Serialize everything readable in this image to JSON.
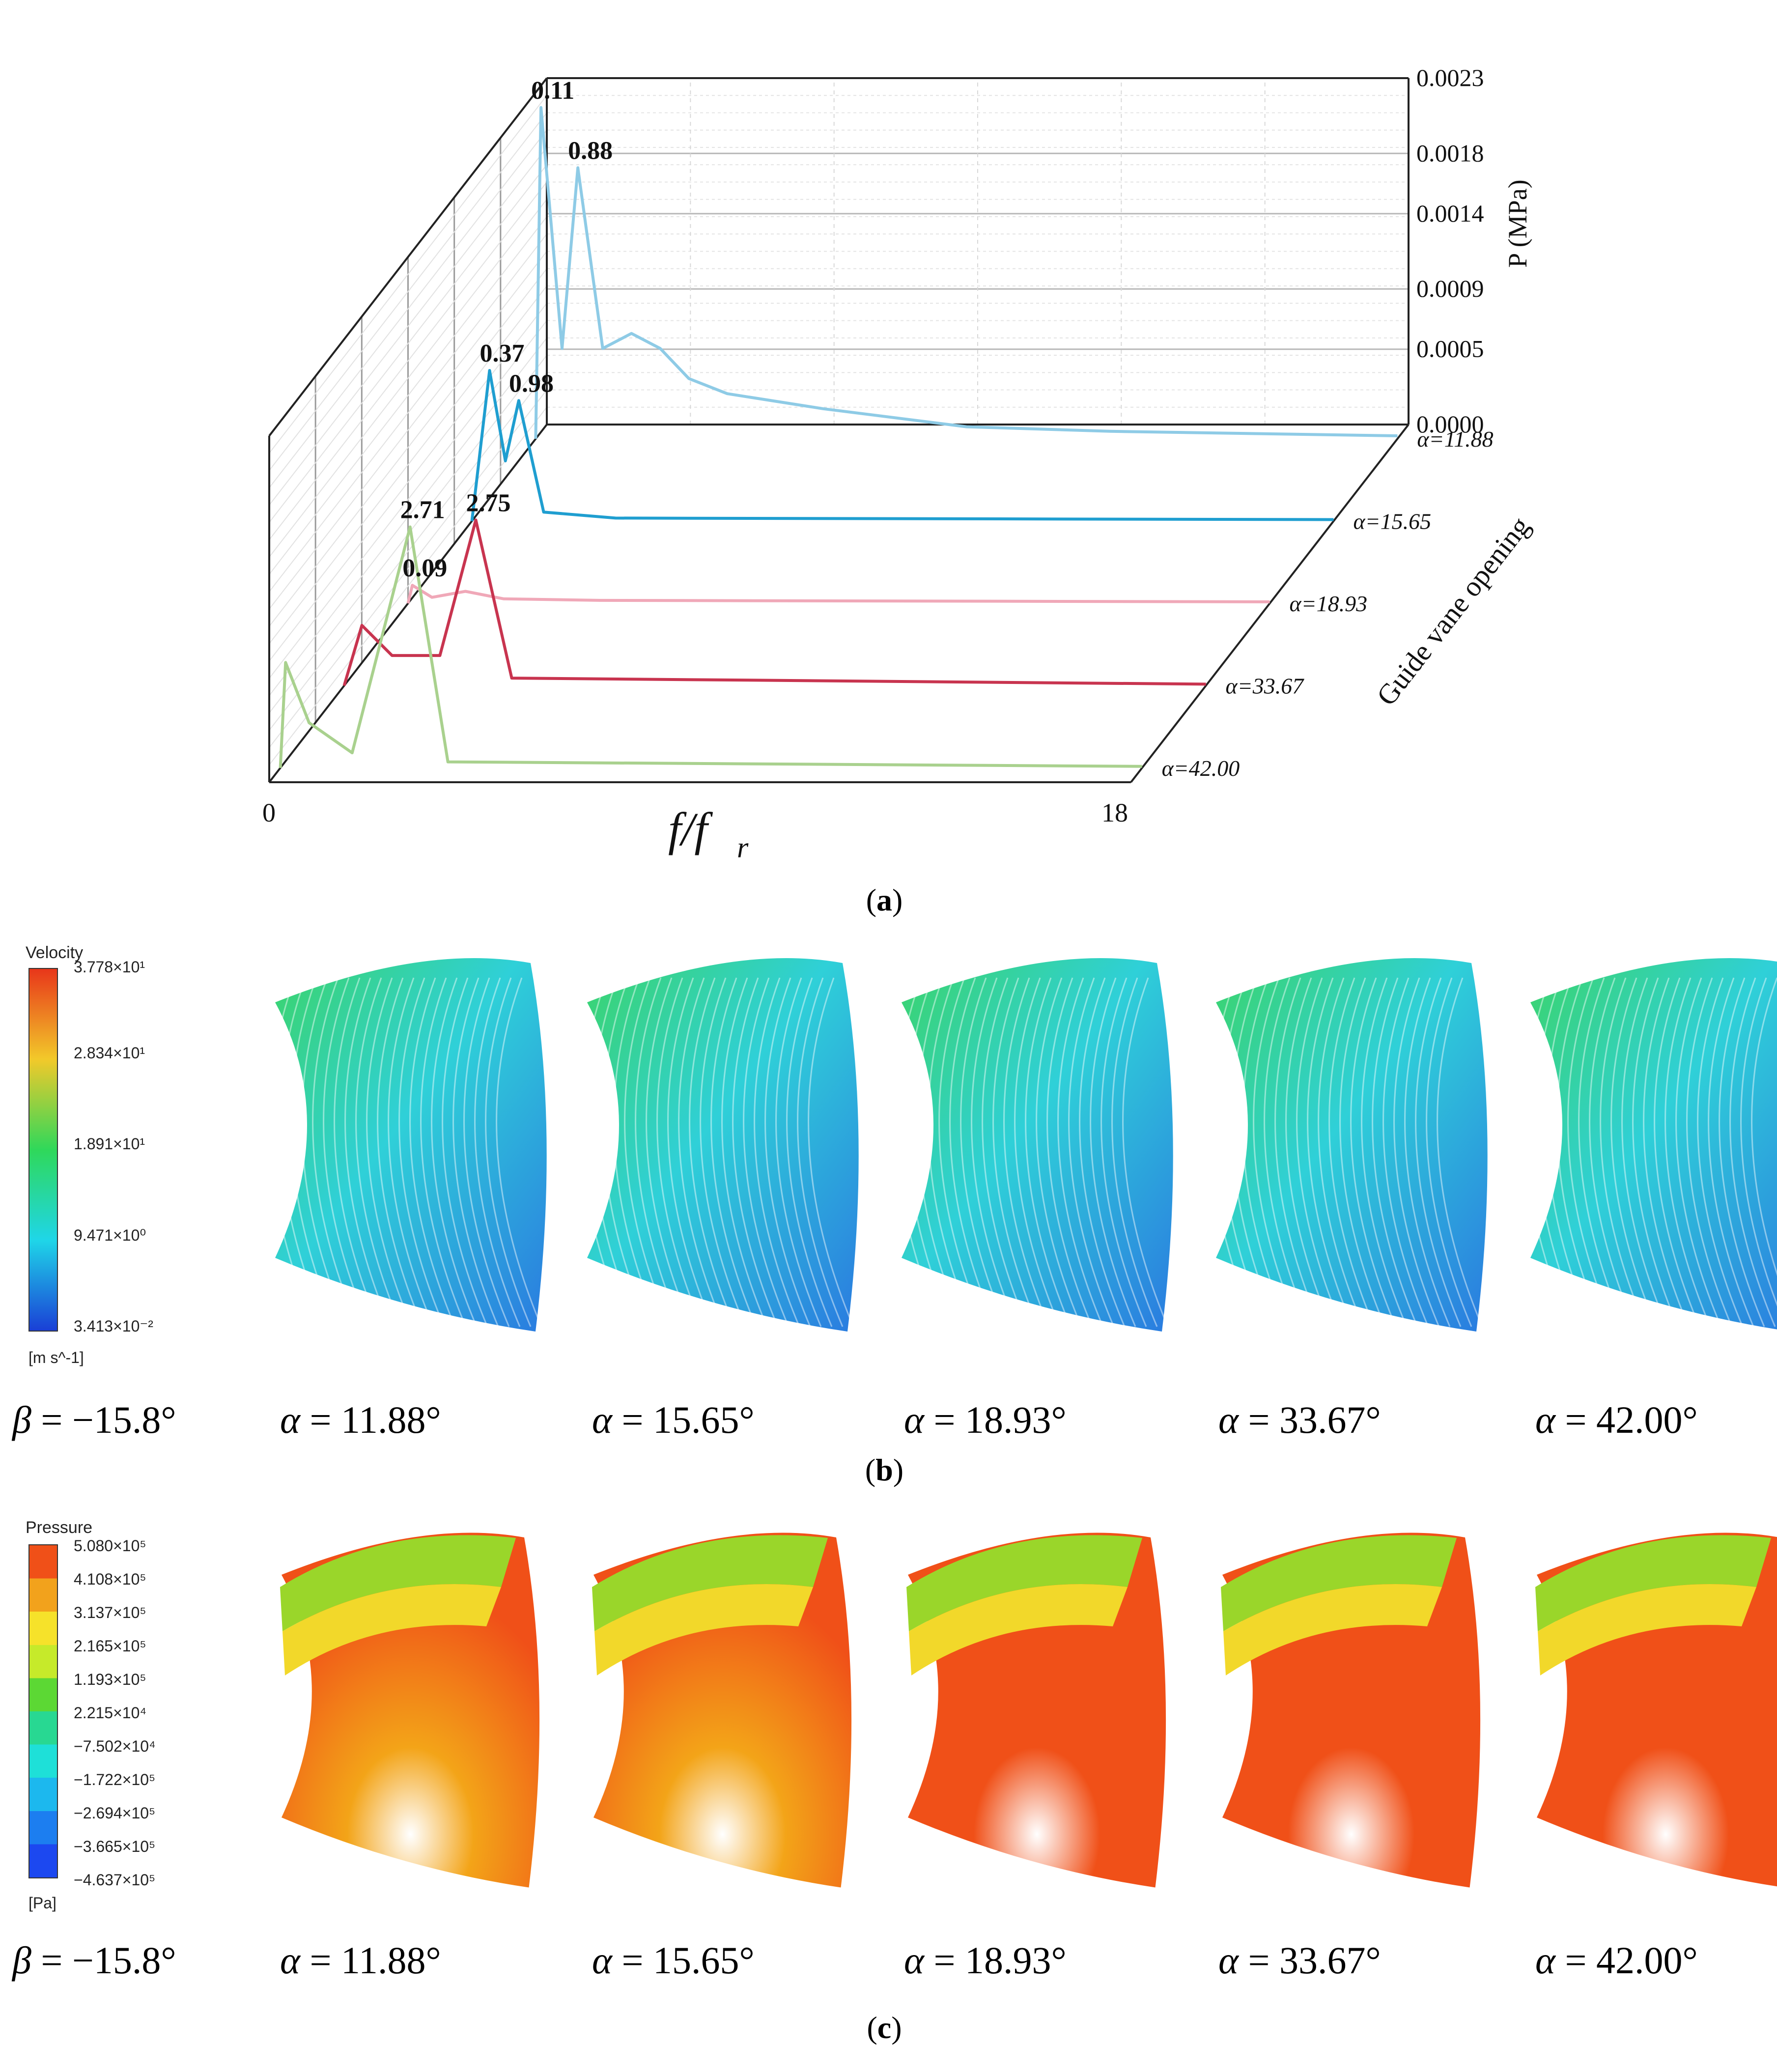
{
  "chart_data": {
    "type": "line",
    "title": "",
    "xlabel": "f/f_r",
    "xlabel_main": "f/f",
    "xlabel_sub": "r",
    "ylabel": "P (MPa)",
    "zlabel": "Guide vane opening",
    "x_ticks": [
      "0",
      "18"
    ],
    "xlim": [
      0,
      18
    ],
    "ylim": [
      0,
      0.0023
    ],
    "y_ticks": [
      "0.0000",
      "0.0005",
      "0.0009",
      "0.0014",
      "0.0018",
      "0.0023"
    ],
    "y_tick_values": [
      0.0,
      0.0005,
      0.0009,
      0.0014,
      0.0018,
      0.0023
    ],
    "grid": true,
    "series": [
      {
        "name": "α=11.88",
        "color": "#8ecbe6",
        "x": [
          0.11,
          0.55,
          0.88,
          1.4,
          2.0,
          2.6,
          3.2,
          4.0,
          6.0,
          9.0,
          12.0,
          18.0
        ],
        "values": [
          0.0022,
          0.0006,
          0.0018,
          0.0006,
          0.0007,
          0.0006,
          0.0004,
          0.0003,
          0.0002,
          8e-05,
          5e-05,
          2e-05
        ]
      },
      {
        "name": "α=15.65",
        "color": "#1f9ed0",
        "x": [
          0.37,
          0.7,
          0.98,
          1.5,
          3.0,
          18.0
        ],
        "values": [
          0.001,
          0.0004,
          0.0008,
          6e-05,
          2e-05,
          1e-05
        ]
      },
      {
        "name": "α=18.93",
        "color": "#f0a8b8",
        "x": [
          0.09,
          0.5,
          1.2,
          2.0,
          4.0,
          18.0
        ],
        "values": [
          0.00012,
          4e-05,
          8e-05,
          3e-05,
          2e-05,
          1e-05
        ]
      },
      {
        "name": "α=33.67",
        "color": "#c8344f",
        "x": [
          0.37,
          1.0,
          2.0,
          2.75,
          3.5,
          18.0
        ],
        "values": [
          0.0004,
          0.0002,
          0.0002,
          0.0011,
          5e-05,
          1e-05
        ]
      },
      {
        "name": "α=42.00",
        "color": "#a9d18e",
        "x": [
          0.11,
          0.6,
          1.5,
          2.71,
          3.5,
          18.0
        ],
        "values": [
          0.0007,
          0.0003,
          0.0001,
          0.0016,
          4e-05,
          1e-05
        ]
      }
    ],
    "annotations": [
      {
        "text": "0.11",
        "series": "α=11.88",
        "x": 0.11
      },
      {
        "text": "0.88",
        "series": "α=11.88",
        "x": 0.88
      },
      {
        "text": "0.37",
        "series": "α=15.65",
        "x": 0.37
      },
      {
        "text": "0.98",
        "series": "α=15.65",
        "x": 0.98
      },
      {
        "text": "0.09",
        "series": "α=18.93",
        "x": 0.09
      },
      {
        "text": "2.75",
        "series": "α=33.67",
        "x": 2.75
      },
      {
        "text": "2.71",
        "series": "α=42.00",
        "x": 2.71
      }
    ]
  },
  "captions": {
    "a": "a",
    "b": "b",
    "c": "c"
  },
  "velocity_legend": {
    "title": "Velocity",
    "unit": "[m s^-1]",
    "ticks": [
      "3.778×10¹",
      "2.834×10¹",
      "1.891×10¹",
      "9.471×10⁰",
      "3.413×10⁻²"
    ],
    "colors": [
      "#e8361a",
      "#f2c92a",
      "#2fd85a",
      "#1fd6e8",
      "#1a3fd6"
    ]
  },
  "pressure_legend": {
    "title": "Pressure",
    "unit": "[Pa]",
    "ticks": [
      "5.080×10⁵",
      "4.108×10⁵",
      "3.137×10⁵",
      "2.165×10⁵",
      "1.193×10⁵",
      "2.215×10⁴",
      "−7.502×10⁴",
      "−1.722×10⁵",
      "−2.694×10⁵",
      "−3.665×10⁵",
      "−4.637×10⁵"
    ],
    "colors": [
      "#f05018",
      "#f2a21c",
      "#f6e22a",
      "#c6ea2a",
      "#5cd834",
      "#28d892",
      "#1ee0d8",
      "#1cb8ee",
      "#1c7ef0",
      "#1c48f0"
    ]
  },
  "labels_b": [
    {
      "sym": "β",
      "text": " = −15.8°"
    },
    {
      "sym": "α",
      "text": " = 11.88°"
    },
    {
      "sym": "α",
      "text": " = 15.65°"
    },
    {
      "sym": "α",
      "text": " = 18.93°"
    },
    {
      "sym": "α",
      "text": " = 33.67°"
    },
    {
      "sym": "α",
      "text": " = 42.00°"
    }
  ],
  "labels_c": [
    {
      "sym": "β",
      "text": " = −15.8°"
    },
    {
      "sym": "α",
      "text": " = 11.88°"
    },
    {
      "sym": "α",
      "text": " = 15.65°"
    },
    {
      "sym": "α",
      "text": " = 18.93°"
    },
    {
      "sym": "α",
      "text": " = 33.67°"
    },
    {
      "sym": "α",
      "text": " = 42.00°"
    }
  ]
}
